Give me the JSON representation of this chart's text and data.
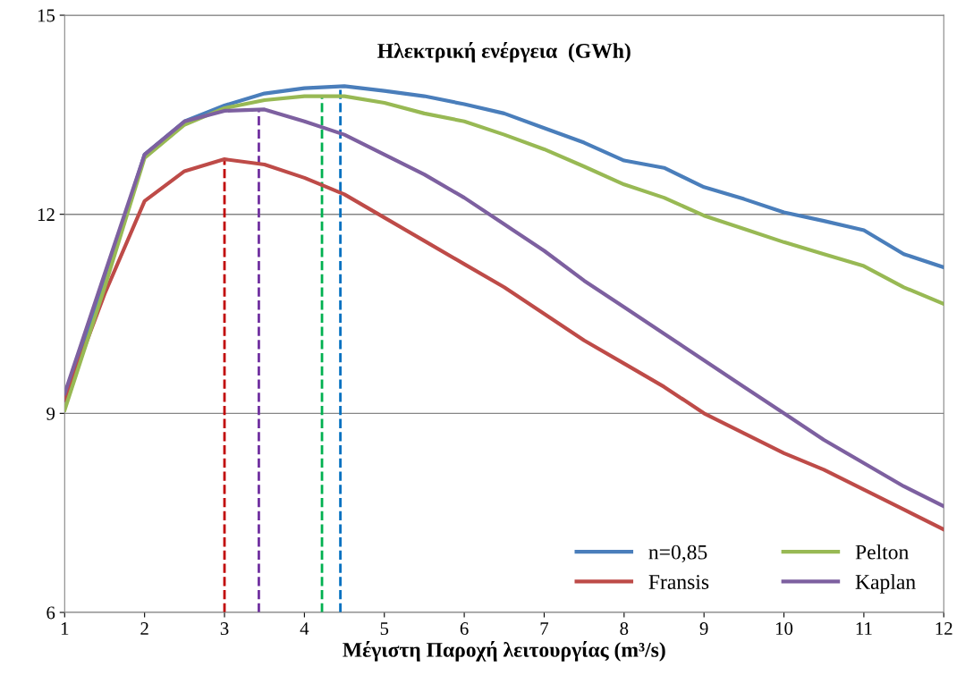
{
  "chart_data": {
    "type": "line",
    "title": "Ηλεκτρική ενέργεια  (GWh)",
    "xlabel": "Μέγιστη Παροχή λειτουργίας (m³/s)",
    "x": [
      1,
      1.5,
      2,
      2.5,
      3,
      3.5,
      4,
      4.5,
      5,
      5.5,
      6,
      6.5,
      7,
      7.5,
      8,
      8.5,
      9,
      9.5,
      10,
      10.5,
      11,
      11.5,
      12
    ],
    "series": [
      {
        "name": "n=0,85",
        "color": "#4a7ebb",
        "values": [
          9.2,
          11.0,
          12.9,
          13.4,
          13.64,
          13.82,
          13.9,
          13.93,
          13.86,
          13.78,
          13.66,
          13.52,
          13.3,
          13.08,
          12.81,
          12.7,
          12.41,
          12.23,
          12.03,
          11.9,
          11.76,
          11.4,
          11.2
        ]
      },
      {
        "name": "Fransis",
        "color": "#be4b48",
        "values": [
          9.2,
          10.8,
          12.2,
          12.65,
          12.83,
          12.75,
          12.55,
          12.3,
          11.95,
          11.6,
          11.25,
          10.9,
          10.5,
          10.1,
          9.75,
          9.4,
          9.0,
          8.7,
          8.4,
          8.15,
          7.85,
          7.55,
          7.25
        ]
      },
      {
        "name": "Pelton",
        "color": "#98b954",
        "values": [
          9.05,
          10.9,
          12.85,
          13.35,
          13.6,
          13.72,
          13.78,
          13.78,
          13.68,
          13.52,
          13.4,
          13.2,
          12.98,
          12.72,
          12.45,
          12.25,
          11.98,
          11.78,
          11.58,
          11.4,
          11.22,
          10.9,
          10.65
        ]
      },
      {
        "name": "Kaplan",
        "color": "#7d60a0",
        "values": [
          9.3,
          11.1,
          12.9,
          13.4,
          13.56,
          13.58,
          13.4,
          13.2,
          12.9,
          12.6,
          12.25,
          11.85,
          11.45,
          11.0,
          10.6,
          10.2,
          9.8,
          9.4,
          9.0,
          8.6,
          8.25,
          7.9,
          7.6
        ]
      },
      {
        "color": "#c00000",
        "x": [
          3,
          3
        ],
        "values": [
          6,
          12.83
        ],
        "line_style": "dashed"
      },
      {
        "color": "#7030a0",
        "x": [
          3.43,
          3.43
        ],
        "values": [
          6,
          13.58
        ],
        "line_style": "dashed"
      },
      {
        "color": "#00b050",
        "x": [
          4.22,
          4.22
        ],
        "values": [
          6,
          13.78
        ],
        "line_style": "dashed"
      },
      {
        "color": "#0070c0",
        "x": [
          4.45,
          4.45
        ],
        "values": [
          6,
          13.93
        ],
        "line_style": "dashed"
      }
    ],
    "xlim": [
      1,
      12
    ],
    "xticks": [
      1,
      2,
      3,
      4,
      5,
      6,
      7,
      8,
      9,
      10,
      11,
      12
    ],
    "ylim": [
      6,
      15
    ],
    "yticks": [
      6,
      9,
      12,
      15
    ],
    "grid": "y",
    "legend": "bottom right",
    "line_style": "solid",
    "marker": "none"
  }
}
